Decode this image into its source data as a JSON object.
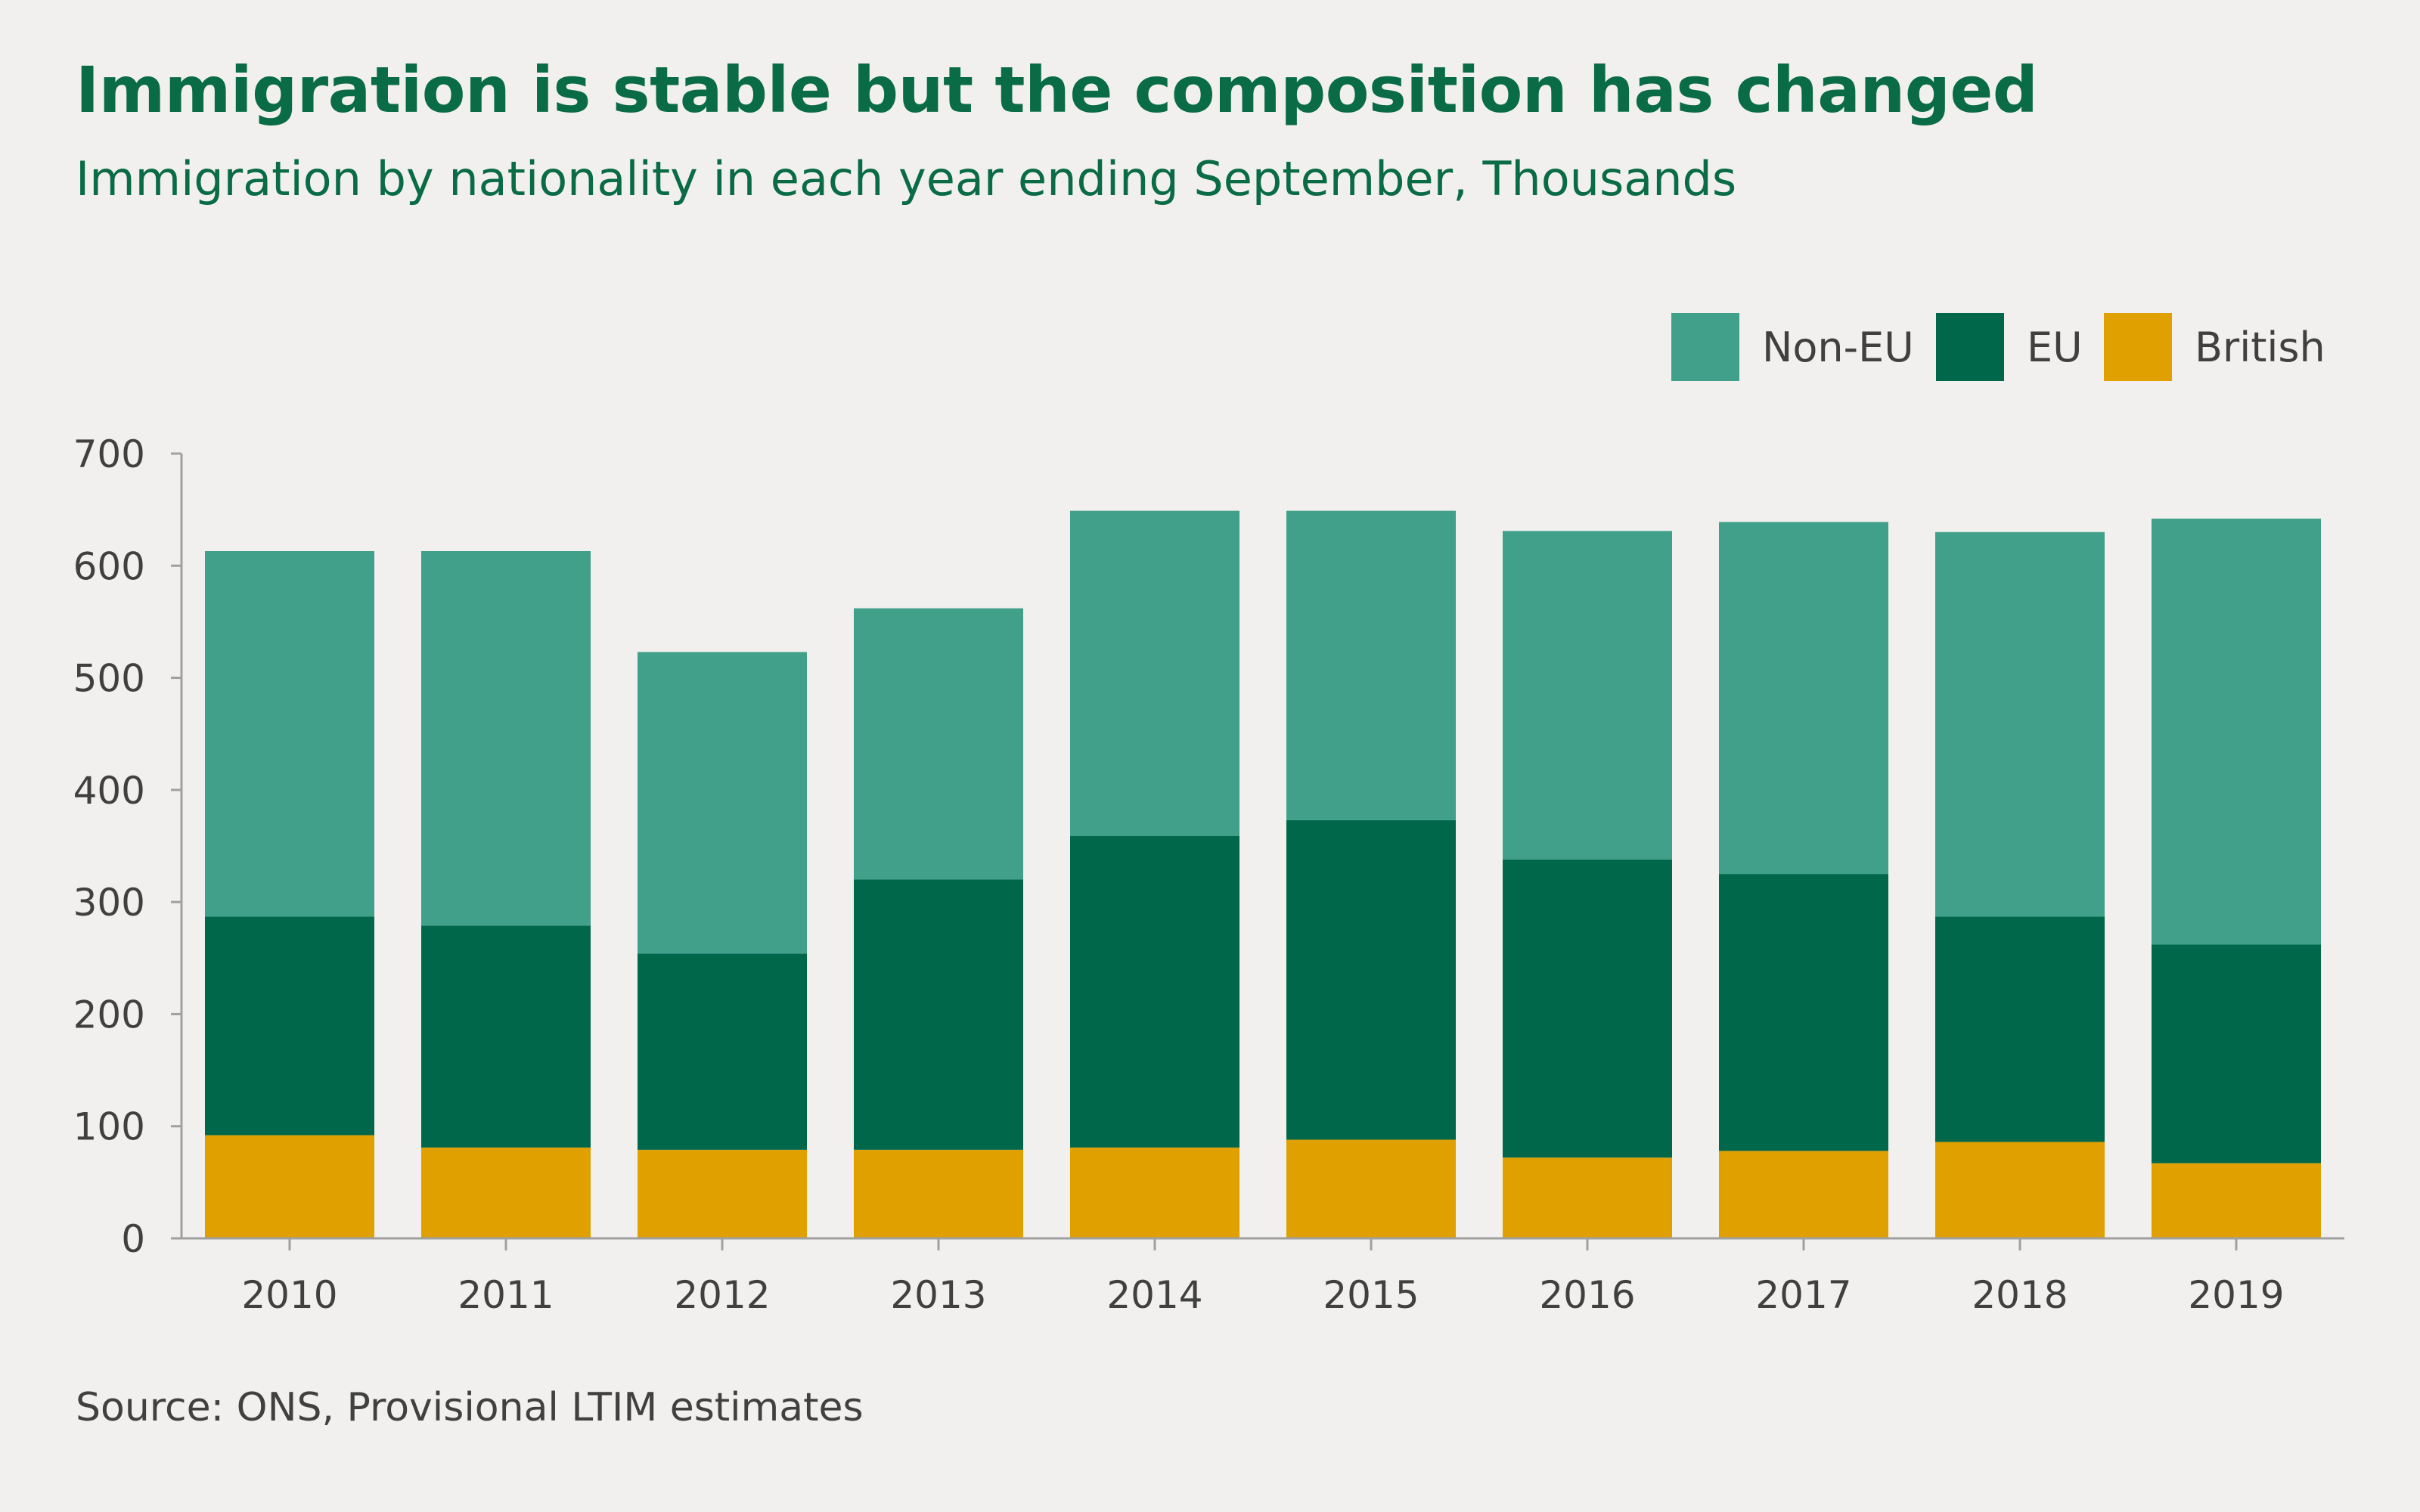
{
  "title": "Immigration is stable but the composition has changed",
  "subtitle": "Immigration by nationality in each year ending September, Thousands",
  "source": "Source: ONS, Provisional LTIM estimates",
  "colors": {
    "Non-EU": "#41a08a",
    "EU": "#00674a",
    "British": "#e0a100"
  },
  "chart_data": {
    "type": "bar",
    "stacked": true,
    "categories": [
      "2010",
      "2011",
      "2012",
      "2013",
      "2014",
      "2015",
      "2016",
      "2017",
      "2018",
      "2019"
    ],
    "series": [
      {
        "name": "British",
        "values": [
          92,
          81,
          79,
          79,
          81,
          88,
          72,
          78,
          86,
          67
        ]
      },
      {
        "name": "EU",
        "values": [
          195,
          198,
          175,
          241,
          278,
          285,
          266,
          247,
          201,
          195
        ]
      },
      {
        "name": "Non-EU",
        "values": [
          326,
          334,
          269,
          242,
          290,
          276,
          293,
          314,
          343,
          380
        ]
      }
    ],
    "legend": [
      "Non-EU",
      "EU",
      "British"
    ],
    "legend_position": "top-right",
    "ylim": [
      0,
      700
    ],
    "yticks": [
      "0",
      "100",
      "200",
      "300",
      "400",
      "500",
      "600",
      "700"
    ],
    "xlabel": "",
    "ylabel": "",
    "grid": false
  }
}
